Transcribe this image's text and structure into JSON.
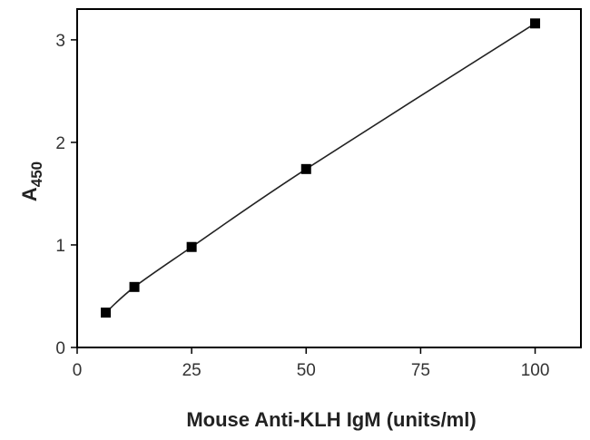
{
  "chart_data": {
    "type": "scatter",
    "title": "",
    "xlabel": "Mouse Anti-KLH IgM (units/ml)",
    "ylabel": "A",
    "ylabel_subscript": "450",
    "xlim": [
      0,
      110
    ],
    "ylim": [
      0,
      3.3
    ],
    "xticks": [
      0,
      25,
      50,
      75,
      100
    ],
    "yticks": [
      0,
      1,
      2,
      3
    ],
    "grid": false,
    "legend": "none",
    "series": [
      {
        "x": [
          6.25,
          12.5,
          25,
          50,
          100
        ],
        "values": [
          0.34,
          0.59,
          0.98,
          1.74,
          3.16
        ],
        "marker": "square",
        "line": "smooth",
        "color": "#000000"
      }
    ]
  }
}
